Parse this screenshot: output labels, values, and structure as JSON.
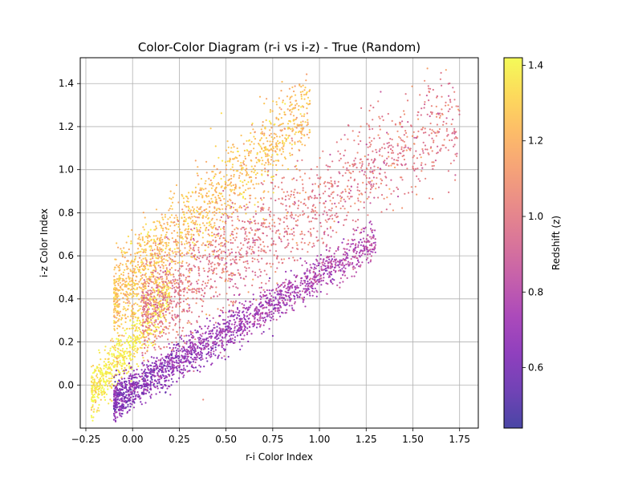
{
  "chart_data": {
    "type": "scatter",
    "title": "Color-Color Diagram (r-i vs i-z) - True (Random)",
    "xlabel": "r-i Color Index",
    "ylabel": "i-z Color Index",
    "xlim": [
      -0.28,
      1.85
    ],
    "ylim": [
      -0.2,
      1.52
    ],
    "xticks": [
      -0.25,
      0.0,
      0.25,
      0.5,
      0.75,
      1.0,
      1.25,
      1.5,
      1.75
    ],
    "xtick_labels": [
      "−0.25",
      "0.00",
      "0.25",
      "0.50",
      "0.75",
      "1.00",
      "1.25",
      "1.50",
      "1.75"
    ],
    "yticks": [
      0.0,
      0.2,
      0.4,
      0.6,
      0.8,
      1.0,
      1.2,
      1.4
    ],
    "ytick_labels": [
      "0.0",
      "0.2",
      "0.4",
      "0.6",
      "0.8",
      "1.0",
      "1.2",
      "1.4"
    ],
    "grid": true,
    "colormap": "plasma",
    "colorbar": {
      "label": "Redshift (z)",
      "range": [
        0.44,
        1.42
      ],
      "ticks": [
        0.6,
        0.8,
        1.0,
        1.2,
        1.4
      ],
      "tick_labels": [
        "0.6",
        "0.8",
        "1.0",
        "1.2",
        "1.4"
      ]
    },
    "populations": [
      {
        "x_range": [
          -0.22,
          0.2
        ],
        "slope": 1.1,
        "intercept": 0.2,
        "spread": 0.06,
        "z": 1.38
      },
      {
        "x_range": [
          -0.1,
          0.95
        ],
        "slope": 0.85,
        "intercept": 0.48,
        "spread": 0.1,
        "z": 1.25
      },
      {
        "x_range": [
          0.05,
          1.75
        ],
        "slope": 0.55,
        "intercept": 0.3,
        "spread": 0.12,
        "z": 1.0
      },
      {
        "x_range": [
          -0.1,
          1.3
        ],
        "slope": 0.53,
        "intercept": -0.02,
        "spread": 0.045,
        "z": 0.72
      }
    ]
  }
}
